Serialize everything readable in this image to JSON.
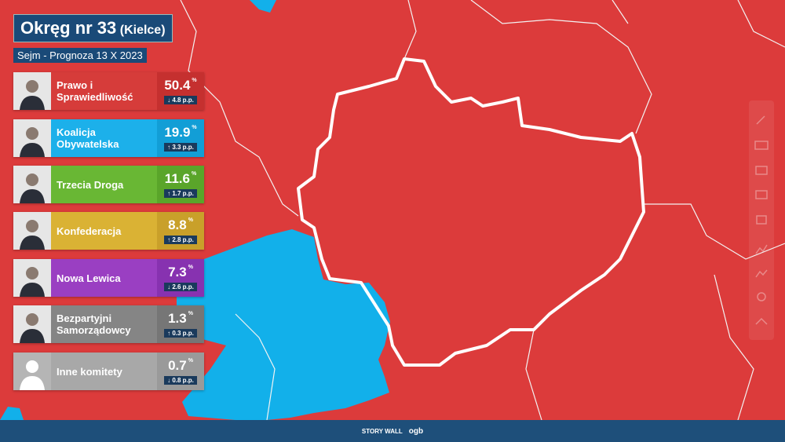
{
  "header": {
    "title": "Okręg nr 33",
    "district": "(Kielce)",
    "subtitle": "Sejm - Prognoza 13 X 2023"
  },
  "parties": [
    {
      "name": "Prawo i Sprawiedliwość",
      "value": 50.4,
      "unit": "%",
      "change": "4.8 p.p.",
      "trend": "down",
      "color": "#d63c3a",
      "dark": "#c5302f"
    },
    {
      "name": "Koalicja Obywatelska",
      "value": 19.9,
      "unit": "%",
      "change": "3.3 p.p.",
      "trend": "up",
      "color": "#1cb0ea",
      "dark": "#129ed6"
    },
    {
      "name": "Trzecia Droga",
      "value": 11.6,
      "unit": "%",
      "change": "1.7 p.p.",
      "trend": "up",
      "color": "#69b734",
      "dark": "#5aa52a"
    },
    {
      "name": "Konfederacja",
      "value": 8.8,
      "unit": "%",
      "change": "2.8 p.p.",
      "trend": "up",
      "color": "#dab234",
      "dark": "#c9a02a"
    },
    {
      "name": "Nowa Lewica",
      "value": 7.3,
      "unit": "%",
      "change": "2.6 p.p.",
      "trend": "down",
      "color": "#9a3fc2",
      "dark": "#8732b0"
    },
    {
      "name": "Bezpartyjni Samorządowcy",
      "value": 1.3,
      "unit": "%",
      "change": "0.3 p.p.",
      "trend": "up",
      "color": "#858585",
      "dark": "#767676"
    },
    {
      "name": "Inne komitety",
      "value": 0.7,
      "unit": "%",
      "change": "0.8 p.p.",
      "trend": "down",
      "color": "#a8a8a8",
      "dark": "#9a9a9a"
    }
  ],
  "footer": {
    "brand": "STORY WALL",
    "logo": "ogb"
  }
}
